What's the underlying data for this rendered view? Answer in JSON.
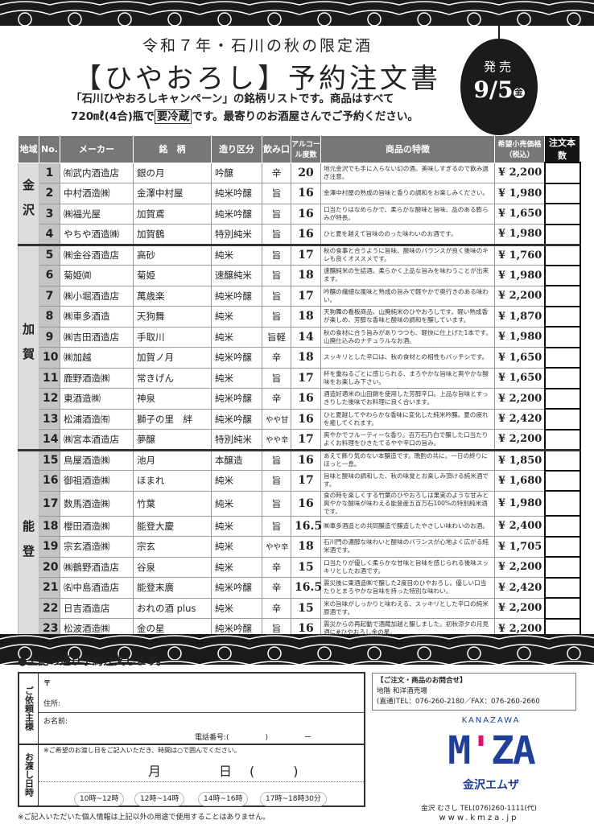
{
  "header": {
    "subtitle": "令和７年・石川の秋の限定酒",
    "title": "【ひやおろし】予約注文書",
    "intro_line1": "「石川ひやおろしキャンペーン」の銘柄リストです。商品はすべて",
    "intro_line2_a": "720㎖(4合)瓶で",
    "intro_line2_boxed": "要冷蔵",
    "intro_line2_b": "です。最寄りのお酒屋さんでご予約ください。"
  },
  "badge": {
    "label": "発売",
    "date": "9/5",
    "weekday": "金"
  },
  "table": {
    "headers": [
      "地域",
      "No.",
      "メーカー",
      "銘　柄",
      "造り区分",
      "飲み口",
      "アルコール度数",
      "商品の特徴",
      "希望小売価格（税込）",
      "注文本数"
    ],
    "regions": [
      {
        "name": "金沢",
        "rows": 4
      },
      {
        "name": "加賀",
        "rows": 10
      },
      {
        "name": "能登",
        "rows": 9
      }
    ],
    "rows": [
      [
        "1",
        "㈲武内酒造店",
        "銀の月",
        "吟醸",
        "辛",
        "20",
        "地元金沢でも手に入らない幻の酒。美味しすぎるので飲み過ぎ注意。",
        "¥ 2,200"
      ],
      [
        "2",
        "中村酒造㈱",
        "金澤中村屋",
        "純米吟醸",
        "旨",
        "16",
        "金澤中村屋の熟成の旨味と香りの調和をお楽しみください。",
        "¥ 1,980"
      ],
      [
        "3",
        "㈱福光屋",
        "加賀鳶",
        "純米吟醸",
        "旨",
        "16",
        "口当たりはなめらかで、柔らかな酸味と旨味、品のある膨らみが特長。",
        "¥ 1,650"
      ],
      [
        "4",
        "やちや酒造㈱",
        "加賀鶴",
        "特別純米",
        "旨",
        "16",
        "ひと夏を越えて旨味ののった味わいのお酒です。",
        "¥ 1,980"
      ],
      [
        "5",
        "㈱金谷酒造店",
        "高砂",
        "純米",
        "旨",
        "17",
        "秋の食事と合うように旨味、酸味のバランスが良く後味のキレも良くオススメです。",
        "¥ 1,760"
      ],
      [
        "6",
        "菊姫㈾",
        "菊姫",
        "速醸純米",
        "旨",
        "18",
        "速醸純米の生詰酒。柔らかく上品な旨みを味わうことが出来ます。",
        "¥ 1,980"
      ],
      [
        "7",
        "㈱小堀酒造店",
        "萬歳楽",
        "純米吟醸",
        "旨",
        "17",
        "吟醸の繊細な風味と熟成の旨みで軽やかで奥行きのある味わい。",
        "¥ 2,200"
      ],
      [
        "8",
        "㈱車多酒造",
        "天狗舞",
        "純米",
        "旨",
        "18",
        "天狗舞の看板商品、山廃純米のひやおろしです。軽い熟成香が楽しめ、芳醇な香味と酸味の調和を醸しています。",
        "¥ 1,870"
      ],
      [
        "9",
        "㈱吉田酒造店",
        "手取川",
        "純米",
        "旨軽",
        "14",
        "秋の食材に合う旨みがありつつも、軽快に仕上げた1本です。山廃仕込みのナチュラルなお酒。",
        "¥ 1,980"
      ],
      [
        "10",
        "㈱加越",
        "加賀ノ月",
        "純米吟醸",
        "辛",
        "18",
        "スッキリとした辛口は、秋の食材との相性もバッチシです。",
        "¥ 1,650"
      ],
      [
        "11",
        "鹿野酒造㈱",
        "常きげん",
        "純米",
        "旨",
        "17",
        "杯を重ねるごとに感じられる、まろやかな旨味と爽やかな酸味をお楽しみ下さい。",
        "¥ 1,650"
      ],
      [
        "12",
        "東酒造㈱",
        "神泉",
        "純米吟醸",
        "辛",
        "16",
        "酒造好適米の山田錦を使用した芳醇辛口。上品な旨味とすっきりした後味でお料理に良く合います。",
        "¥ 2,200"
      ],
      [
        "13",
        "松浦酒造㈲",
        "獅子の里　絆",
        "純米吟醸",
        "やや甘",
        "16",
        "ひと夏越してやわらかな香味に変化した純米吟醸。夏の疲れを癒してくれます。",
        "¥ 2,420"
      ],
      [
        "14",
        "㈱宮本酒造店",
        "夢醸",
        "特別純米",
        "やや辛",
        "17",
        "爽やかでフルーティーな香り。百万石乃白で醸した口当たりよくお料理をひきたてるやや辛口の旨み。",
        "¥ 2,200"
      ],
      [
        "15",
        "鳥屋酒造㈱",
        "池月",
        "本醸造",
        "旨",
        "16",
        "あえて飾り気のない本醸造です。晩酌の共に。一日の終りにほっと一息。",
        "¥ 1,850"
      ],
      [
        "16",
        "御祖酒造㈱",
        "ほまれ",
        "純米",
        "旨",
        "17",
        "旨味と酸味の調和した、秋の味覚とお楽しみ頂ける純米酒です。",
        "¥ 1,680"
      ],
      [
        "17",
        "数馬酒造㈱",
        "竹葉",
        "純米",
        "旨",
        "16",
        "食の時を楽しくする竹葉のひやおろしは果実のような甘みと爽やかな酸味が味わえる能登産五百万石100%の特別純米酒です。",
        "¥ 1,980"
      ],
      [
        "18",
        "櫻田酒造㈱",
        "能登大慶",
        "純米",
        "旨",
        "16.5",
        "㈱車多酒造との共同醸造で醸造したやさしい味わいのお酒。",
        "¥ 2,400"
      ],
      [
        "19",
        "宗玄酒造㈱",
        "宗玄",
        "純米",
        "やや辛",
        "18",
        "石川門の濃醇な味わいと酸味のバランスが心地よく広がる純米酒です。",
        "¥ 1,705"
      ],
      [
        "20",
        "㈱鶴野酒造店",
        "谷泉",
        "純米",
        "辛",
        "15",
        "口当たりが優しく柔らかな甘味と旨味を感じられる後味スッキリとしたお酒です。",
        "¥ 2,200"
      ],
      [
        "21",
        "㈴中島酒造店",
        "能登末廣",
        "純米吟醸",
        "辛",
        "16.5",
        "震災後に東酒造㈱で醸した2度目のひやおろし。優しい口当たりとまろやかな旨味を持った特別な味わい。",
        "¥ 2,420"
      ],
      [
        "22",
        "日吉酒造店",
        "おれの酒 plus",
        "純米",
        "辛",
        "15",
        "米の旨味がしっかりと味わえる、スッキリとした辛口の純米原酒です。",
        "¥ 2,200"
      ],
      [
        "23",
        "松波酒造㈱",
        "金の星",
        "純米吟醸",
        "旨",
        "16",
        "震災からの再起動で酒蔵加越と醸しました。初秋涼夕の月見酒に#ひやおろし金の星。",
        "¥ 2,200"
      ]
    ]
  },
  "form": {
    "heading": "●上記の通り予約注文します。",
    "requester_label": "ご依頼主様",
    "postal": "〒",
    "address": "住所:",
    "name": "お名前:",
    "phone": "電話番号:(　　　　　)　　　　　ー",
    "delivery_label": "お渡し日時",
    "delivery_note": "※ご希望のお渡し日をご記入いただき、時間は○で囲んでください。",
    "month": "月",
    "day": "日",
    "paren": "(　　　)",
    "slots": [
      "10時~12時",
      "12時~14時",
      "14時~16時",
      "17時~18時30分"
    ],
    "privacy": "※ご記入いただいた個人情報は上記以外の用途で使用することはありません。"
  },
  "contact": {
    "heading": "【ご注文・商品のお問合せ】",
    "dept": "地階 和洋酒売場",
    "tel": "(直通)TEL：076-260-2180／FAX：076-260-2660"
  },
  "logo": {
    "top": "KANAZAWA",
    "mark_a": "M",
    "mark_b": "'",
    "mark_c": "ZA",
    "jp": "金沢エムザ",
    "colors": {
      "blue": "#1f3f99",
      "pink": "#e0106e"
    }
  },
  "shop": {
    "line1": "金沢 むさし TEL(076)260-1111(代)",
    "url": "www.kmza.jp"
  }
}
